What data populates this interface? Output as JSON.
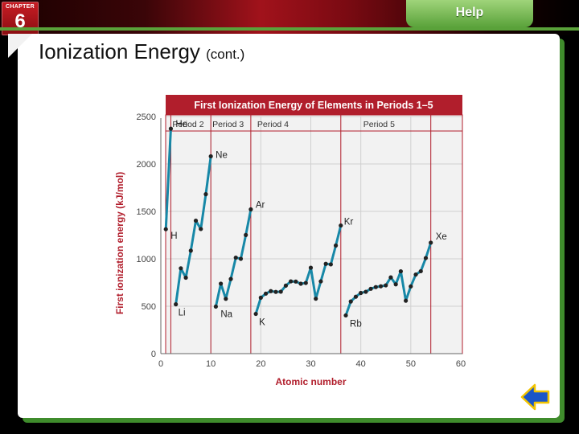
{
  "header": {
    "chapter_label": "CHAPTER",
    "chapter_number": "6",
    "help_label": "Help"
  },
  "slide": {
    "title": "Ionization Energy",
    "title_suffix": "(cont.)"
  },
  "colors": {
    "chart_title_bar": "#b11e2c",
    "line": "#1788a7",
    "point": "#222222",
    "plot_bg": "#f2f2f2",
    "grid": "#b11e2c",
    "accent_green": "#5aa23a",
    "back_arrow": "#1a56c8"
  },
  "chart_data": {
    "type": "line",
    "title": "First Ionization Energy of Elements in Periods 1–5",
    "xlabel": "Atomic number",
    "ylabel": "First ionization energy (kJ/mol)",
    "xlim": [
      0,
      60
    ],
    "ylim": [
      0,
      2500
    ],
    "xticks": [
      0,
      10,
      20,
      30,
      40,
      50,
      60
    ],
    "yticks": [
      0,
      500,
      1000,
      1500,
      2000,
      2500
    ],
    "grid": true,
    "period_labels": [
      "Period 2",
      "Period 3",
      "Period 4",
      "Period 5"
    ],
    "period_boundaries": [
      2,
      10,
      18,
      36,
      54
    ],
    "series": [
      {
        "x": [
          1,
          2
        ],
        "y": [
          1312,
          2372
        ]
      },
      {
        "x": [
          3,
          4,
          5,
          6,
          7,
          8,
          9,
          10
        ],
        "y": [
          520,
          900,
          801,
          1086,
          1402,
          1314,
          1681,
          2081
        ]
      },
      {
        "x": [
          11,
          12,
          13,
          14,
          15,
          16,
          17,
          18
        ],
        "y": [
          496,
          738,
          578,
          787,
          1012,
          1000,
          1251,
          1521
        ]
      },
      {
        "x": [
          19,
          20,
          21,
          22,
          23,
          24,
          25,
          26,
          27,
          28,
          29,
          30,
          31,
          32,
          33,
          34,
          35,
          36
        ],
        "y": [
          419,
          590,
          633,
          659,
          651,
          653,
          717,
          762,
          760,
          737,
          745,
          906,
          579,
          762,
          947,
          941,
          1140,
          1351
        ]
      },
      {
        "x": [
          37,
          38,
          39,
          40,
          41,
          42,
          43,
          44,
          45,
          46,
          47,
          48,
          49,
          50,
          51,
          52,
          53,
          54
        ],
        "y": [
          403,
          550,
          600,
          640,
          652,
          684,
          702,
          710,
          720,
          804,
          731,
          868,
          558,
          709,
          834,
          869,
          1008,
          1170
        ]
      }
    ],
    "annotations": [
      {
        "text": "H",
        "x": 1,
        "y": 1312
      },
      {
        "text": "He",
        "x": 2,
        "y": 2372
      },
      {
        "text": "Li",
        "x": 3,
        "y": 520
      },
      {
        "text": "Ne",
        "x": 10,
        "y": 2081
      },
      {
        "text": "Na",
        "x": 11,
        "y": 496
      },
      {
        "text": "Ar",
        "x": 18,
        "y": 1521
      },
      {
        "text": "K",
        "x": 19,
        "y": 419
      },
      {
        "text": "Kr",
        "x": 36,
        "y": 1351
      },
      {
        "text": "Rb",
        "x": 37,
        "y": 403
      },
      {
        "text": "Xe",
        "x": 54,
        "y": 1170
      }
    ]
  }
}
